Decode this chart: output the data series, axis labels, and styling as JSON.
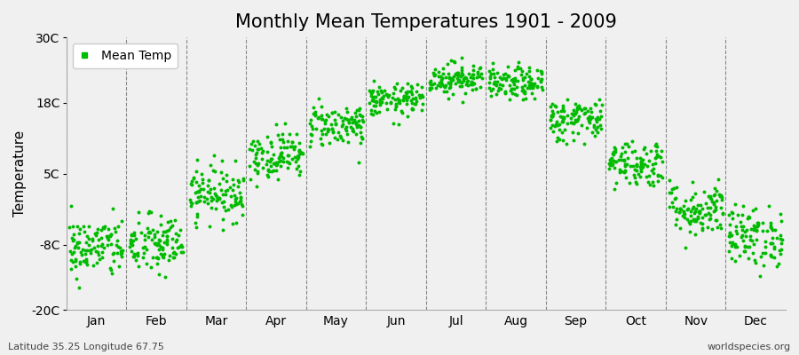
{
  "title": "Monthly Mean Temperatures 1901 - 2009",
  "ylabel": "Temperature",
  "yticks": [
    -20,
    -8,
    5,
    18,
    30
  ],
  "ytick_labels": [
    "-20C",
    "-8C",
    "5C",
    "18C",
    "30C"
  ],
  "ylim": [
    -20,
    30
  ],
  "months": [
    "Jan",
    "Feb",
    "Mar",
    "Apr",
    "May",
    "Jun",
    "Jul",
    "Aug",
    "Sep",
    "Oct",
    "Nov",
    "Dec"
  ],
  "month_means": [
    -8.5,
    -8.0,
    1.5,
    8.5,
    14.0,
    18.5,
    22.5,
    21.5,
    15.0,
    7.0,
    -1.5,
    -6.5
  ],
  "month_stds": [
    2.8,
    2.8,
    2.5,
    2.2,
    2.0,
    1.5,
    1.5,
    1.5,
    2.0,
    2.2,
    2.5,
    2.8
  ],
  "n_years": 109,
  "dot_color": "#00bb00",
  "dot_size": 8,
  "background_color": "#f0f0f0",
  "plot_bg_color": "#f0f0f0",
  "grid_color": "#888888",
  "title_fontsize": 15,
  "axis_fontsize": 11,
  "tick_fontsize": 10,
  "footer_left": "Latitude 35.25 Longitude 67.75",
  "footer_right": "worldspecies.org",
  "legend_label": "Mean Temp",
  "seed": 42
}
